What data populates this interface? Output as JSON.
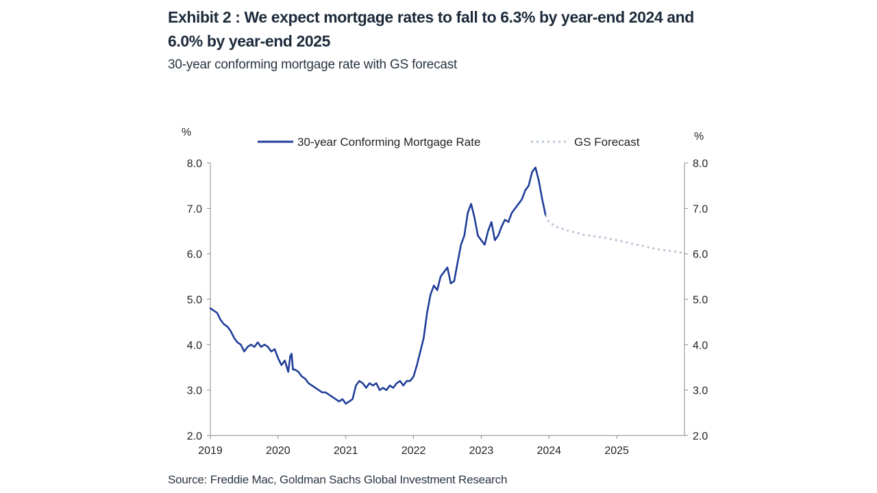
{
  "title": "Exhibit 2 : We expect mortgage rates to fall to 6.3% by year-end 2024 and 6.0% by year-end 2025",
  "subtitle": "30-year conforming mortgage rate with GS forecast",
  "source": "Source: Freddie Mac, Goldman Sachs Global Investment Research",
  "colors": {
    "actual": "#1f3d99",
    "forecast": "#b8c4d4",
    "axis": "#888888"
  },
  "chart_data": {
    "type": "line",
    "title": "30-year conforming mortgage rate with GS forecast",
    "left_unit": "%",
    "right_unit": "%",
    "ylim": [
      2.0,
      8.0
    ],
    "xlim": [
      2019,
      2026
    ],
    "yticks": [
      "2.0",
      "3.0",
      "4.0",
      "5.0",
      "6.0",
      "7.0",
      "8.0"
    ],
    "xticks": [
      "2019",
      "2020",
      "2021",
      "2022",
      "2023",
      "2024",
      "2025"
    ],
    "legend": [
      "30-year Conforming Mortgage Rate",
      "GS Forecast"
    ],
    "legend_position": "top",
    "series": [
      {
        "name": "30-year Conforming Mortgage Rate",
        "style": "solid",
        "x": [
          2019.0,
          2019.05,
          2019.1,
          2019.15,
          2019.2,
          2019.25,
          2019.3,
          2019.35,
          2019.4,
          2019.45,
          2019.5,
          2019.55,
          2019.6,
          2019.65,
          2019.7,
          2019.75,
          2019.8,
          2019.85,
          2019.9,
          2019.95,
          2020.0,
          2020.05,
          2020.1,
          2020.15,
          2020.18,
          2020.2,
          2020.22,
          2020.25,
          2020.3,
          2020.35,
          2020.4,
          2020.45,
          2020.5,
          2020.55,
          2020.6,
          2020.65,
          2020.7,
          2020.75,
          2020.8,
          2020.85,
          2020.9,
          2020.95,
          2021.0,
          2021.05,
          2021.1,
          2021.15,
          2021.2,
          2021.25,
          2021.3,
          2021.35,
          2021.4,
          2021.45,
          2021.5,
          2021.55,
          2021.6,
          2021.65,
          2021.7,
          2021.75,
          2021.8,
          2021.85,
          2021.9,
          2021.95,
          2022.0,
          2022.05,
          2022.1,
          2022.15,
          2022.2,
          2022.25,
          2022.3,
          2022.35,
          2022.4,
          2022.45,
          2022.5,
          2022.55,
          2022.6,
          2022.65,
          2022.7,
          2022.75,
          2022.8,
          2022.85,
          2022.9,
          2022.95,
          2023.0,
          2023.05,
          2023.1,
          2023.15,
          2023.2,
          2023.25,
          2023.3,
          2023.35,
          2023.4,
          2023.45,
          2023.5,
          2023.55,
          2023.6,
          2023.65,
          2023.7,
          2023.75,
          2023.8,
          2023.85,
          2023.9,
          2023.95
        ],
        "values": [
          4.8,
          4.75,
          4.7,
          4.55,
          4.45,
          4.4,
          4.3,
          4.15,
          4.05,
          4.0,
          3.85,
          3.95,
          4.0,
          3.95,
          4.05,
          3.95,
          4.0,
          3.95,
          3.85,
          3.9,
          3.7,
          3.55,
          3.65,
          3.4,
          3.75,
          3.8,
          3.45,
          3.45,
          3.4,
          3.3,
          3.25,
          3.15,
          3.1,
          3.05,
          3.0,
          2.95,
          2.95,
          2.9,
          2.85,
          2.8,
          2.75,
          2.8,
          2.7,
          2.75,
          2.8,
          3.1,
          3.2,
          3.15,
          3.05,
          3.15,
          3.1,
          3.15,
          3.0,
          3.05,
          3.0,
          3.1,
          3.05,
          3.15,
          3.2,
          3.1,
          3.2,
          3.2,
          3.3,
          3.55,
          3.85,
          4.15,
          4.7,
          5.1,
          5.3,
          5.2,
          5.5,
          5.6,
          5.7,
          5.35,
          5.4,
          5.8,
          6.2,
          6.4,
          6.9,
          7.1,
          6.8,
          6.4,
          6.3,
          6.2,
          6.5,
          6.7,
          6.3,
          6.4,
          6.6,
          6.75,
          6.7,
          6.9,
          7.0,
          7.1,
          7.2,
          7.4,
          7.5,
          7.8,
          7.9,
          7.6,
          7.2,
          6.85
        ]
      },
      {
        "name": "GS Forecast",
        "style": "dotted",
        "x": [
          2023.95,
          2024.0,
          2024.1,
          2024.2,
          2024.3,
          2024.4,
          2024.5,
          2024.6,
          2024.7,
          2024.8,
          2024.9,
          2025.0,
          2025.1,
          2025.2,
          2025.3,
          2025.4,
          2025.5,
          2025.6,
          2025.7,
          2025.8,
          2025.9,
          2025.97
        ],
        "values": [
          6.85,
          6.7,
          6.6,
          6.55,
          6.5,
          6.47,
          6.42,
          6.4,
          6.38,
          6.36,
          6.33,
          6.3,
          6.27,
          6.23,
          6.2,
          6.17,
          6.13,
          6.1,
          6.08,
          6.06,
          6.04,
          6.02
        ]
      }
    ]
  }
}
